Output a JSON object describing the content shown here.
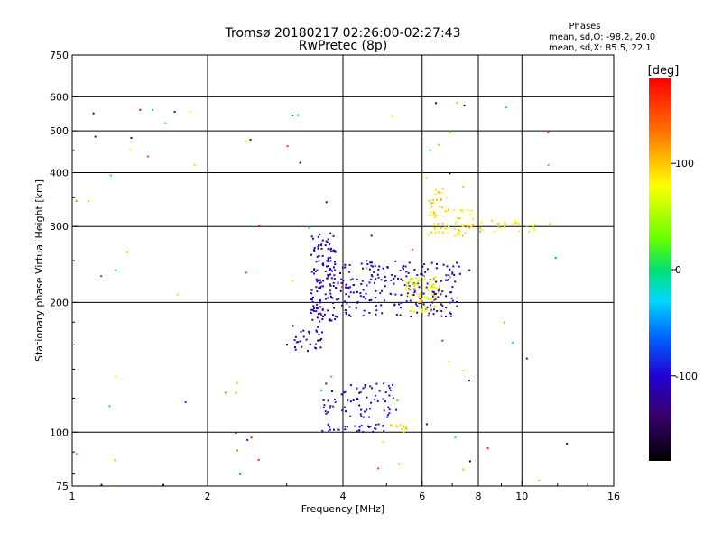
{
  "chart_data": {
    "type": "scatter",
    "title": "Tromsø 20180217 02:26:00-02:27:43",
    "subtitle": "RwPretec (8p)",
    "info": {
      "heading": "Phases",
      "line1": "mean, sd,O: -98.2, 20.0",
      "line2": "mean, sd,X:  85.5, 22.1"
    },
    "xlabel": "Frequency [MHz]",
    "ylabel": "Stationary phase Virtual Height [km]",
    "x_scale": "log",
    "y_scale": "log",
    "xlim": [
      1,
      16
    ],
    "ylim": [
      75,
      750
    ],
    "x_ticks": [
      1,
      2,
      4,
      6,
      8,
      10,
      16
    ],
    "x_tick_labels": [
      "1",
      "2",
      "4",
      "6",
      "8",
      "10",
      "16"
    ],
    "x_grid": [
      2,
      4,
      6,
      8,
      10
    ],
    "y_ticks": [
      75,
      100,
      200,
      300,
      400,
      500,
      600,
      750
    ],
    "y_tick_labels": [
      "75",
      "100",
      "200",
      "300",
      "400",
      "500",
      "600",
      "750"
    ],
    "y_grid": [
      100,
      200,
      300,
      400,
      500,
      600
    ],
    "grid": true,
    "colorbar": {
      "unit": "[deg]",
      "range": [
        -180,
        180
      ],
      "tick_values": [
        100,
        0,
        -100
      ],
      "tick_labels": [
        "100",
        "0",
        "-100"
      ]
    },
    "traces": [
      {
        "name": "",
        "x_range": [
          3.0,
          3.6
        ],
        "y_range": [
          152,
          180
        ],
        "phase_range": [
          -130,
          -90
        ],
        "count": 30
      },
      {
        "name": "",
        "x_range": [
          3.4,
          3.85
        ],
        "y_range": [
          180,
          290
        ],
        "phase_range": [
          -130,
          -90
        ],
        "count": 140
      },
      {
        "name": "",
        "x_range": [
          3.85,
          7.3
        ],
        "y_range": [
          185,
          250
        ],
        "phase_range": [
          -125,
          -85
        ],
        "count": 230
      },
      {
        "name": "",
        "x_range": [
          5.5,
          6.6
        ],
        "y_range": [
          190,
          230
        ],
        "phase_range": [
          60,
          100
        ],
        "count": 90
      },
      {
        "name": "",
        "x_range": [
          6.2,
          7.8
        ],
        "y_range": [
          285,
          330
        ],
        "phase_range": [
          70,
          110
        ],
        "count": 60
      },
      {
        "name": "",
        "x_range": [
          7.8,
          10.8
        ],
        "y_range": [
          292,
          310
        ],
        "phase_range": [
          70,
          110
        ],
        "count": 25
      },
      {
        "name": "",
        "x_range": [
          3.6,
          5.3
        ],
        "y_range": [
          108,
          130
        ],
        "phase_range": [
          -120,
          -80
        ],
        "count": 70
      },
      {
        "name": "",
        "x_range": [
          3.6,
          5.1
        ],
        "y_range": [
          100,
          105
        ],
        "phase_range": [
          -120,
          -80
        ],
        "count": 30
      },
      {
        "name": "",
        "x_range": [
          5.1,
          5.6
        ],
        "y_range": [
          100,
          104
        ],
        "phase_range": [
          70,
          110
        ],
        "count": 12
      },
      {
        "name": "",
        "x_range": [
          6.2,
          6.8
        ],
        "y_range": [
          330,
          370
        ],
        "phase_range": [
          80,
          120
        ],
        "count": 15
      },
      {
        "name": "",
        "x_range": [
          1.0,
          13.0
        ],
        "y_range": [
          75,
          600
        ],
        "phase_range": [
          -180,
          180
        ],
        "count": 90
      }
    ]
  }
}
